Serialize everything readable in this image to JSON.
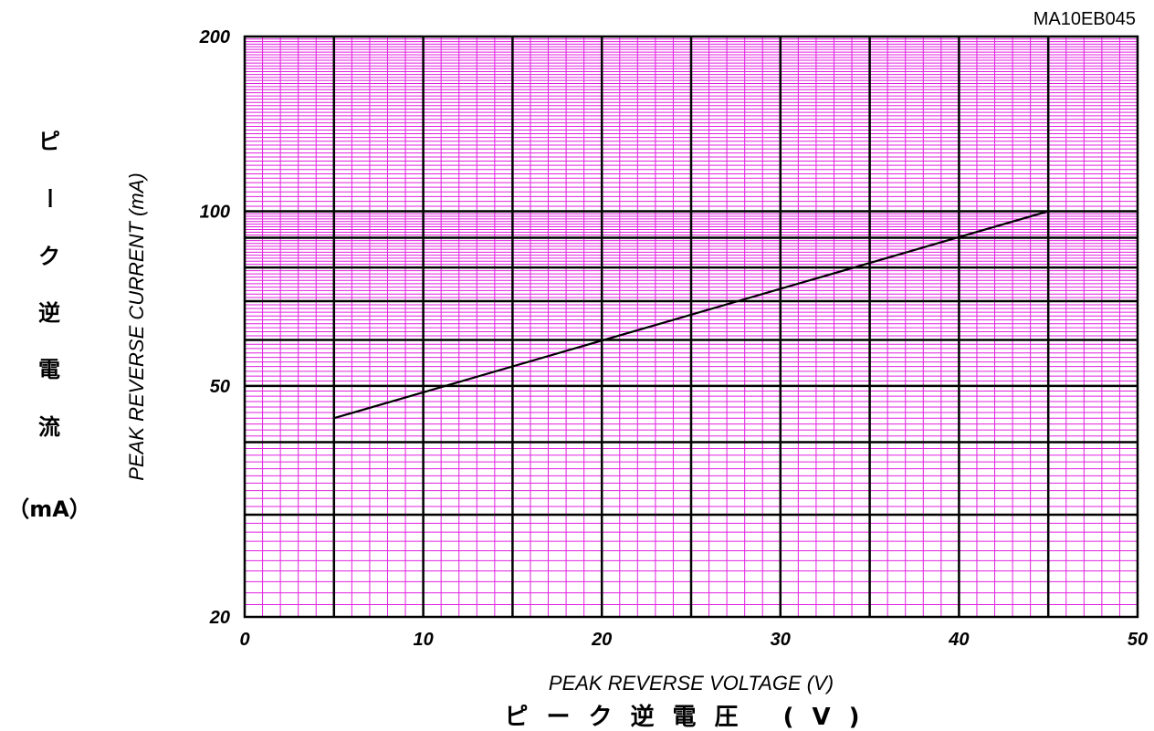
{
  "document_code": "MA10EB045",
  "chart_data": {
    "type": "line",
    "xlabel": "PEAK REVERSE VOLTAGE (V)",
    "xlabel_jp": "ピーク逆電圧 (V)",
    "ylabel": "PEAK REVERSE CURRENT (mA)",
    "ylabel_jp": [
      "ピ",
      "ー",
      "ク",
      "逆",
      "電",
      "流",
      "（mA）"
    ],
    "xlim": [
      0,
      50
    ],
    "ylim": [
      20,
      200
    ],
    "yscale": "log",
    "x_ticks": [
      "0",
      "10",
      "20",
      "30",
      "40",
      "50"
    ],
    "y_ticks": [
      "20",
      "50",
      "100",
      "200"
    ],
    "grid": true,
    "series": [
      {
        "x": [
          5,
          45
        ],
        "y": [
          44,
          100
        ]
      }
    ]
  },
  "colors": {
    "major_grid": "#000000",
    "minor_grid": "#e020e0",
    "line": "#000000"
  }
}
